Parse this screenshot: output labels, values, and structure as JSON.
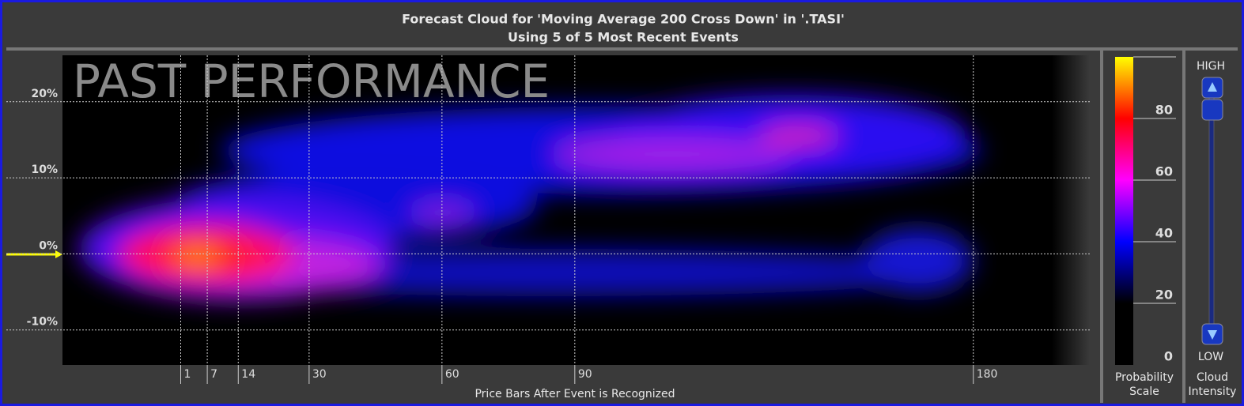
{
  "chart_data": {
    "type": "heatmap",
    "title": "Forecast Cloud for 'Moving Average 200 Cross Down' in '.TASI'",
    "subtitle": "Using 5 of 5 Most Recent Events",
    "watermark": "PAST PERFORMANCE",
    "x_label": "Price Bars After Event is Recognized",
    "xlim": [
      -25.7,
      206.3
    ],
    "xticks": [
      1,
      7,
      14,
      30,
      60,
      90,
      180
    ],
    "ylim": [
      -14.6,
      26.1
    ],
    "yticks": [
      {
        "value": -10,
        "label": "-10%"
      },
      {
        "value": 0,
        "label": "0%"
      },
      {
        "value": 10,
        "label": "10%"
      },
      {
        "value": 20,
        "label": "20%"
      }
    ],
    "grid": true,
    "colorbar": {
      "label": [
        "Probability",
        "Scale"
      ],
      "ylim": [
        0,
        100
      ],
      "yticks": [
        0,
        20,
        40,
        60,
        80
      ],
      "colors": [
        "#000000",
        "#000000",
        "#0000ff",
        "#ff00ff",
        "#ff0000",
        "#ffff00"
      ]
    },
    "slider": {
      "high": "HIGH",
      "low": "LOW",
      "label": [
        "Cloud",
        "Intensity"
      ]
    }
  }
}
